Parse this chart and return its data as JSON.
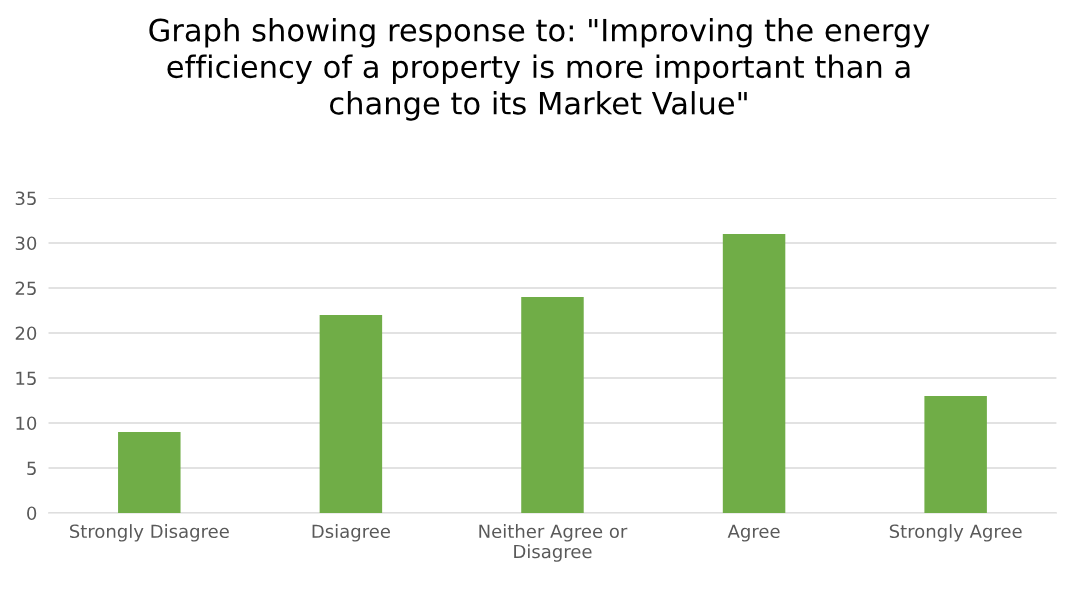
{
  "chart_data": {
    "type": "bar",
    "title": "Graph showing response to: \"Improving the energy\nefficiency of a property is more important than a\nchange to its Market Value\"",
    "categories": [
      "Strongly Disagree",
      "Dsiagree",
      "Neither Agree or\nDisagree",
      "Agree",
      "Strongly Agree"
    ],
    "values": [
      9,
      22,
      24,
      31,
      13
    ],
    "color": "#70ad47",
    "ylim": [
      0,
      35
    ],
    "yticks": [
      0,
      5,
      10,
      15,
      20,
      25,
      30,
      35
    ],
    "grid": "y"
  }
}
